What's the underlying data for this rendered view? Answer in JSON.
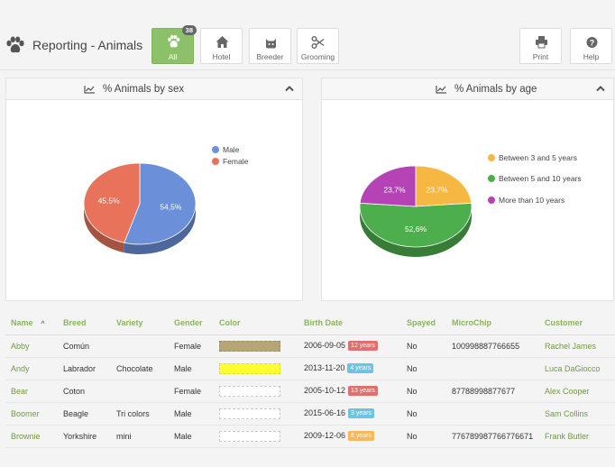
{
  "header": {
    "title": "Reporting - Animals",
    "buttons": [
      {
        "label": "All",
        "badge": "38",
        "icon": "paw-icon",
        "active": true
      },
      {
        "label": "Hotel",
        "icon": "home-icon"
      },
      {
        "label": "Breeder",
        "icon": "cat-icon"
      },
      {
        "label": "Grooming",
        "icon": "scissors-icon"
      }
    ],
    "print_label": "Print",
    "help_label": "Help"
  },
  "panels": {
    "sex": {
      "title": "% Animals by sex"
    },
    "age": {
      "title": "% Animals by age"
    }
  },
  "chart_data": [
    {
      "type": "pie",
      "title": "% Animals by sex",
      "labels": [
        "Male",
        "Female"
      ],
      "values": [
        54.5,
        45.5
      ],
      "value_labels": [
        "54,5%",
        "45,5%"
      ],
      "colors": [
        "#6b8fd8",
        "#e8735a"
      ],
      "legend_position": "top-right"
    },
    {
      "type": "pie",
      "title": "% Animals by age",
      "labels": [
        "Between 3 and 5 years",
        "Between 5 and 10 years",
        "More than 10 years"
      ],
      "values": [
        23.7,
        52.6,
        23.7
      ],
      "value_labels": [
        "23,7%",
        "52,6%",
        "23,7%"
      ],
      "colors": [
        "#f7b843",
        "#4cae4c",
        "#b543b6"
      ],
      "legend_position": "top-right"
    }
  ],
  "table": {
    "columns": [
      "Name",
      "Breed",
      "Variety",
      "Gender",
      "Color",
      "Birth Date",
      "Spayed",
      "MicroChip",
      "Customer"
    ],
    "sort_indicator": "^",
    "rows": [
      {
        "name": "Abby",
        "breed": "Común",
        "variety": "",
        "gender": "Female",
        "color": "#b5a678",
        "birth": "2006-09-05",
        "age": "12 years",
        "age_color": "#e0706e",
        "spayed": "No",
        "chip": "100998887766655",
        "customer": "Rachel James"
      },
      {
        "name": "Andy",
        "breed": "Labrador",
        "variety": "Chocolate",
        "gender": "Male",
        "color": "#ffff33",
        "birth": "2013-11-20",
        "age": "4 years",
        "age_color": "#6cc4e0",
        "spayed": "No",
        "chip": "",
        "customer": "Luca DaGiocco"
      },
      {
        "name": "Bear",
        "breed": "Coton",
        "variety": "",
        "gender": "Female",
        "color": "#ffffff",
        "birth": "2005-10-12",
        "age": "13 years",
        "age_color": "#e0706e",
        "spayed": "No",
        "chip": "87788998877677",
        "customer": "Alex Cooper"
      },
      {
        "name": "Boomer",
        "breed": "Beagle",
        "variety": "Tri colors",
        "gender": "Male",
        "color": "#ffffff",
        "birth": "2015-06-16",
        "age": "3 years",
        "age_color": "#6cc4e0",
        "spayed": "No",
        "chip": "",
        "customer": "Sam Collins"
      },
      {
        "name": "Brownie",
        "breed": "Yorkshire",
        "variety": "mini",
        "gender": "Male",
        "color": "#ffffff",
        "birth": "2009-12-06",
        "age": "8 years",
        "age_color": "#f5b85a",
        "spayed": "No",
        "chip": "776789987766776671",
        "customer": "Frank Butler"
      }
    ]
  }
}
